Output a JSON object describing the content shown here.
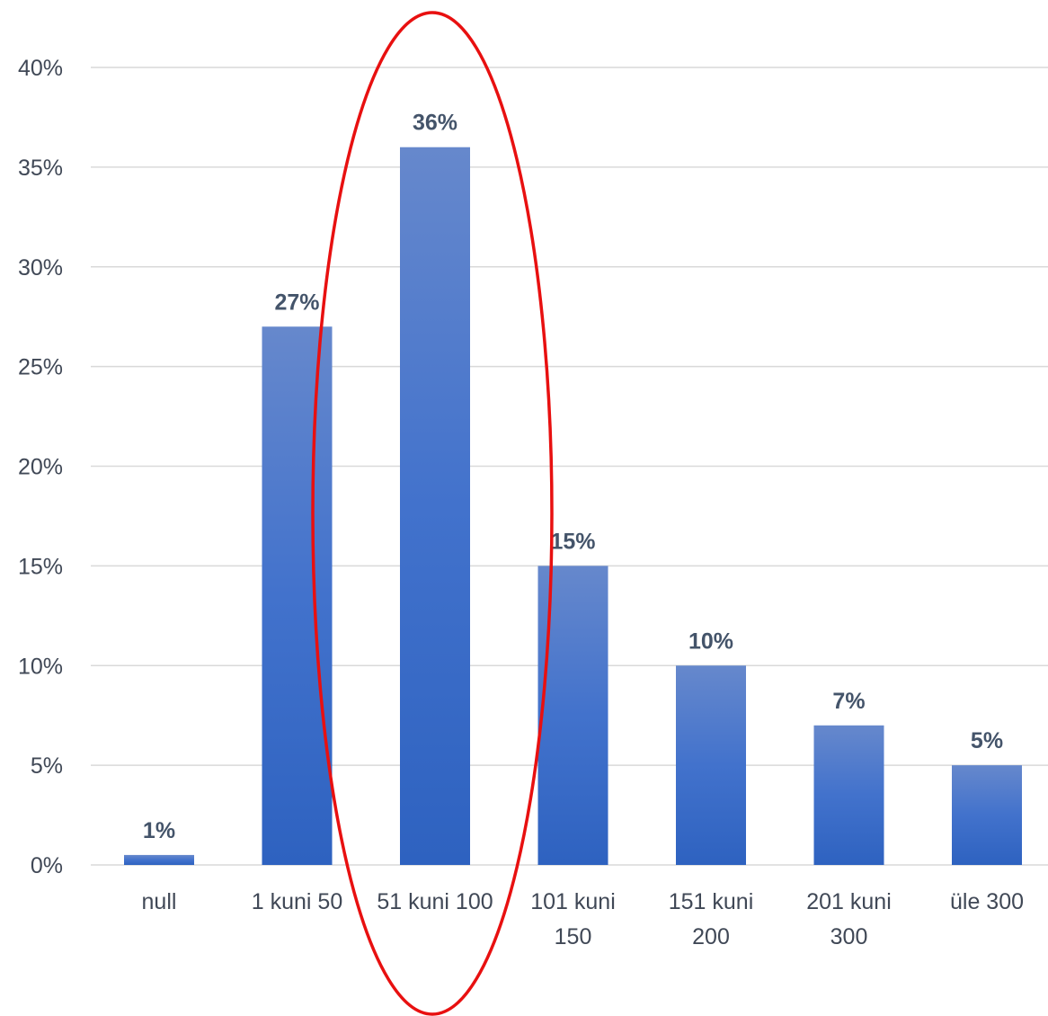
{
  "chart_data": {
    "type": "bar",
    "categories": [
      [
        "null"
      ],
      [
        "1 kuni 50"
      ],
      [
        "51 kuni 100"
      ],
      [
        "101 kuni",
        "150"
      ],
      [
        "151 kuni",
        "200"
      ],
      [
        "201 kuni",
        "300"
      ],
      [
        "üle 300"
      ]
    ],
    "values": [
      0.5,
      27,
      36,
      15,
      10,
      7,
      5
    ],
    "data_labels": [
      "1%",
      "27%",
      "36%",
      "15%",
      "10%",
      "7%",
      "5%"
    ],
    "yticks": [
      "0%",
      "5%",
      "10%",
      "15%",
      "20%",
      "25%",
      "30%",
      "35%",
      "40%"
    ],
    "ylim": [
      0,
      40
    ],
    "title": "",
    "xlabel": "",
    "ylabel": "",
    "grid": true,
    "legend": "none",
    "highlight": {
      "shape": "ellipse",
      "category_index": 2,
      "color": "#e81010"
    },
    "colors": {
      "bar_top": "#6688cc",
      "bar_bottom": "#2e62c0",
      "grid": "#d9d9d9",
      "text": "#404856",
      "label": "#44546a"
    }
  }
}
